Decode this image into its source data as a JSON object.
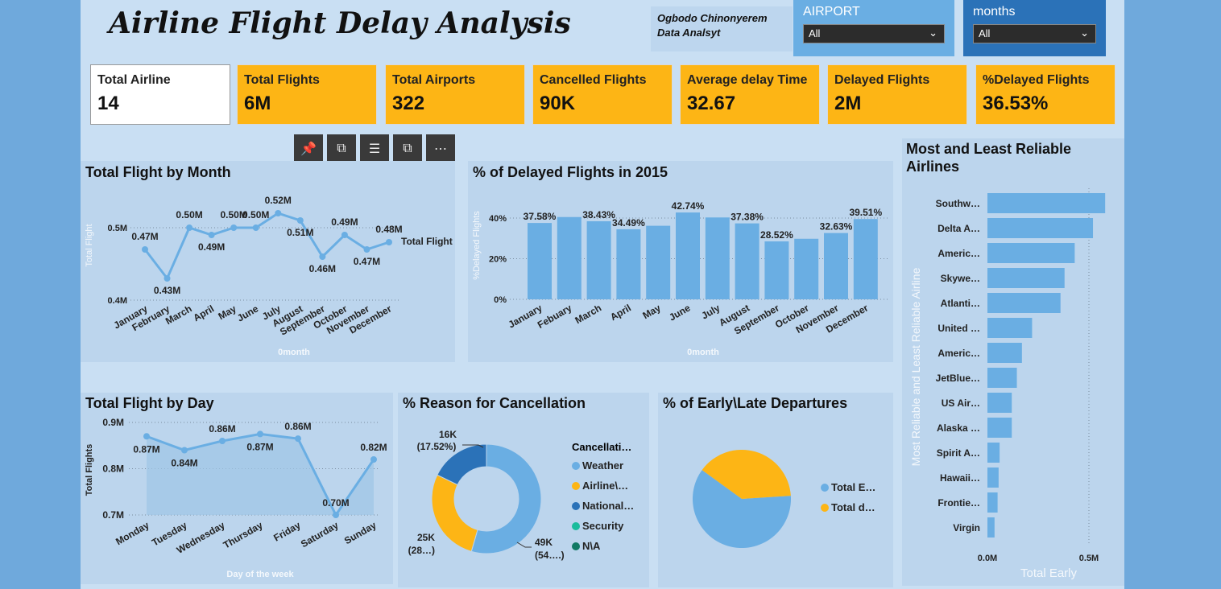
{
  "header": {
    "title": "Airline Flight Delay Analysis",
    "author_name": "Ogbodo Chinonyerem",
    "author_role": "Data Analsyt"
  },
  "slicers": [
    {
      "label": "AIRPORT",
      "value": "All"
    },
    {
      "label": "months",
      "value": "All"
    }
  ],
  "kpis": [
    {
      "label": "Total Airline",
      "value": "14"
    },
    {
      "label": "Total Flights",
      "value": "6M"
    },
    {
      "label": "Total Airports",
      "value": "322"
    },
    {
      "label": "Cancelled Flights",
      "value": "90K"
    },
    {
      "label": "Average delay Time",
      "value": "32.67"
    },
    {
      "label": "Delayed Flights",
      "value": "2M"
    },
    {
      "label": "%Delayed Flights",
      "value": "36.53%"
    }
  ],
  "toolbar": {
    "icons": [
      "pin-icon",
      "copy-icon",
      "filter-icon",
      "focus-icon",
      "more-icon"
    ]
  },
  "colors": {
    "kpi": "#fdb515",
    "series": "#6aaee3",
    "dark_blue": "#2b72b8",
    "yellow": "#fdb515",
    "teal": "#1abc9c",
    "dark_teal": "#117a65"
  },
  "chart_data": [
    {
      "id": "month",
      "type": "line",
      "title": "Total Flight by Month",
      "xlabel": "0month",
      "ylabel": "Total Flight",
      "series_label": "Total Flight",
      "categories": [
        "January",
        "February",
        "March",
        "April",
        "May",
        "June",
        "July",
        "August",
        "September",
        "October",
        "November",
        "December"
      ],
      "values": [
        0.47,
        0.43,
        0.5,
        0.49,
        0.5,
        0.5,
        0.52,
        0.51,
        0.46,
        0.49,
        0.47,
        0.48
      ],
      "data_labels": [
        "0.47M",
        "0.43M",
        "0.50M",
        "0.49M",
        "0.50M",
        "0.50M",
        "0.52M",
        "0.51M",
        "0.46M",
        "0.49M",
        "0.47M",
        "0.48M"
      ],
      "yticks": [
        "0.4M",
        "0.5M"
      ],
      "ylim": [
        0.4,
        0.54
      ]
    },
    {
      "id": "delayed",
      "type": "bar",
      "title": "% of Delayed Flights in 2015",
      "xlabel": "0month",
      "ylabel": "%Delayed Flights",
      "categories": [
        "January",
        "Febuary",
        "March",
        "April",
        "May",
        "June",
        "July",
        "August",
        "September",
        "October",
        "November",
        "December"
      ],
      "values": [
        37.58,
        40.5,
        38.43,
        34.49,
        36.2,
        42.74,
        40.3,
        37.38,
        28.52,
        29.8,
        32.63,
        39.51
      ],
      "data_labels": [
        "37.58%",
        "",
        "38.43%",
        "34.49%",
        "",
        "42.74%",
        "",
        "37.38%",
        "28.52%",
        "",
        "32.63%",
        "39.51%"
      ],
      "yticks": [
        "0%",
        "20%",
        "40%"
      ],
      "ylim": [
        0,
        46
      ]
    },
    {
      "id": "day",
      "type": "area",
      "title": "Total Flight by Day",
      "xlabel": "Day of the week",
      "ylabel": "Total Flights",
      "categories": [
        "Monday",
        "Tuesday",
        "Wednesday",
        "Thursday",
        "Friday",
        "Saturday",
        "Sunday"
      ],
      "values": [
        0.87,
        0.84,
        0.86,
        0.875,
        0.865,
        0.7,
        0.82
      ],
      "data_labels": [
        "0.87M",
        "0.84M",
        "0.86M",
        "0.87M",
        "0.86M",
        "0.70M",
        "0.82M"
      ],
      "yticks": [
        "0.7M",
        "0.8M",
        "0.9M"
      ],
      "ylim": [
        0.7,
        0.9
      ]
    },
    {
      "id": "cancel",
      "type": "pie",
      "title": "% Reason for Cancellation",
      "legend_title": "Cancellati…",
      "legend": [
        "Weather",
        "Airline\\…",
        "National…",
        "Security",
        "N\\A"
      ],
      "slices": [
        {
          "name": "Weather",
          "value": 49,
          "label1": "49K",
          "label2": "(54….)"
        },
        {
          "name": "Airline",
          "value": 25,
          "label1": "25K",
          "label2": "(28…)"
        },
        {
          "name": "National",
          "value": 16,
          "label1": "16K",
          "label2": "(17.52%)"
        }
      ]
    },
    {
      "id": "early",
      "type": "pie",
      "title": "% of Early\\Late Departures",
      "legend": [
        "Total E…",
        "Total d…"
      ],
      "slices": [
        {
          "name": "Total E…",
          "value": 61
        },
        {
          "name": "Total d…",
          "value": 39
        }
      ]
    },
    {
      "id": "reliable",
      "type": "bar",
      "title": "Most and Least Reliable Airlines",
      "xlabel": "Total Early",
      "ylabel": "Most Reliable and Least Reliable Airline",
      "categories": [
        "Southw…",
        "Delta A…",
        "Americ…",
        "Skywe…",
        "Atlanti…",
        "United …",
        "Americ…",
        "JetBlue…",
        "US Air…",
        "Alaska …",
        "Spirit A…",
        "Hawaii…",
        "Frontie…",
        "Virgin"
      ],
      "values": [
        0.58,
        0.52,
        0.43,
        0.38,
        0.36,
        0.22,
        0.17,
        0.145,
        0.12,
        0.12,
        0.06,
        0.055,
        0.05,
        0.035
      ],
      "xticks": [
        "0.0M",
        "0.5M"
      ],
      "xlim": [
        0,
        0.6
      ]
    }
  ]
}
